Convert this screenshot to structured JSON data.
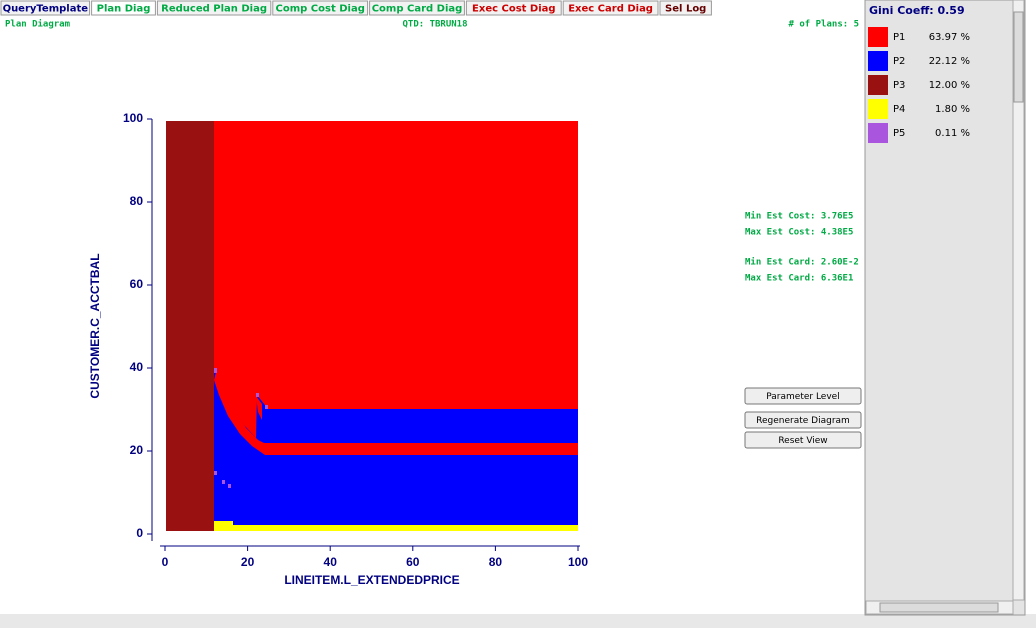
{
  "tabs": [
    {
      "label": "QueryTemplate",
      "color": "#000080"
    },
    {
      "label": "Plan Diag",
      "color": "#00aa44"
    },
    {
      "label": "Reduced Plan Diag",
      "color": "#00aa44"
    },
    {
      "label": "Comp Cost Diag",
      "color": "#00aa44"
    },
    {
      "label": "Comp Card Diag",
      "color": "#00aa44"
    },
    {
      "label": "Exec Cost Diag",
      "color": "#cc0000"
    },
    {
      "label": "Exec Card Diag",
      "color": "#cc0000"
    },
    {
      "label": "Sel Log",
      "color": "#660000"
    }
  ],
  "header": {
    "left": "Plan Diagram",
    "center": "QTD: TBRUN18",
    "right": "# of Plans: 5"
  },
  "diagram": {
    "xlabel": "LINEITEM.L_EXTENDEDPRICE",
    "ylabel": "CUSTOMER.C_ACCTBAL",
    "xlim": [
      0,
      100
    ],
    "ylim": [
      0,
      100
    ],
    "xticks": [
      0,
      20,
      40,
      60,
      80,
      100
    ],
    "yticks": [
      0,
      20,
      40,
      60,
      80,
      100
    ]
  },
  "stats": [
    "Min Est Cost: 3.76E5",
    "Max Est Cost: 4.38E5",
    "Min Est Card: 2.60E-2",
    "Max Est Card: 6.36E1"
  ],
  "buttons": [
    "Parameter Level",
    "Regenerate Diagram",
    "Reset View"
  ],
  "legend": {
    "title": "Gini Coeff: 0.59",
    "items": [
      {
        "plan": "P1",
        "percent": "63.97 %",
        "color": "#ff0000"
      },
      {
        "plan": "P2",
        "percent": "22.12 %",
        "color": "#0000ff"
      },
      {
        "plan": "P3",
        "percent": "12.00 %",
        "color": "#991111"
      },
      {
        "plan": "P4",
        "percent": "1.80 %",
        "color": "#ffff00"
      },
      {
        "plan": "P5",
        "percent": "0.11 %",
        "color": "#aa55dd"
      }
    ]
  }
}
